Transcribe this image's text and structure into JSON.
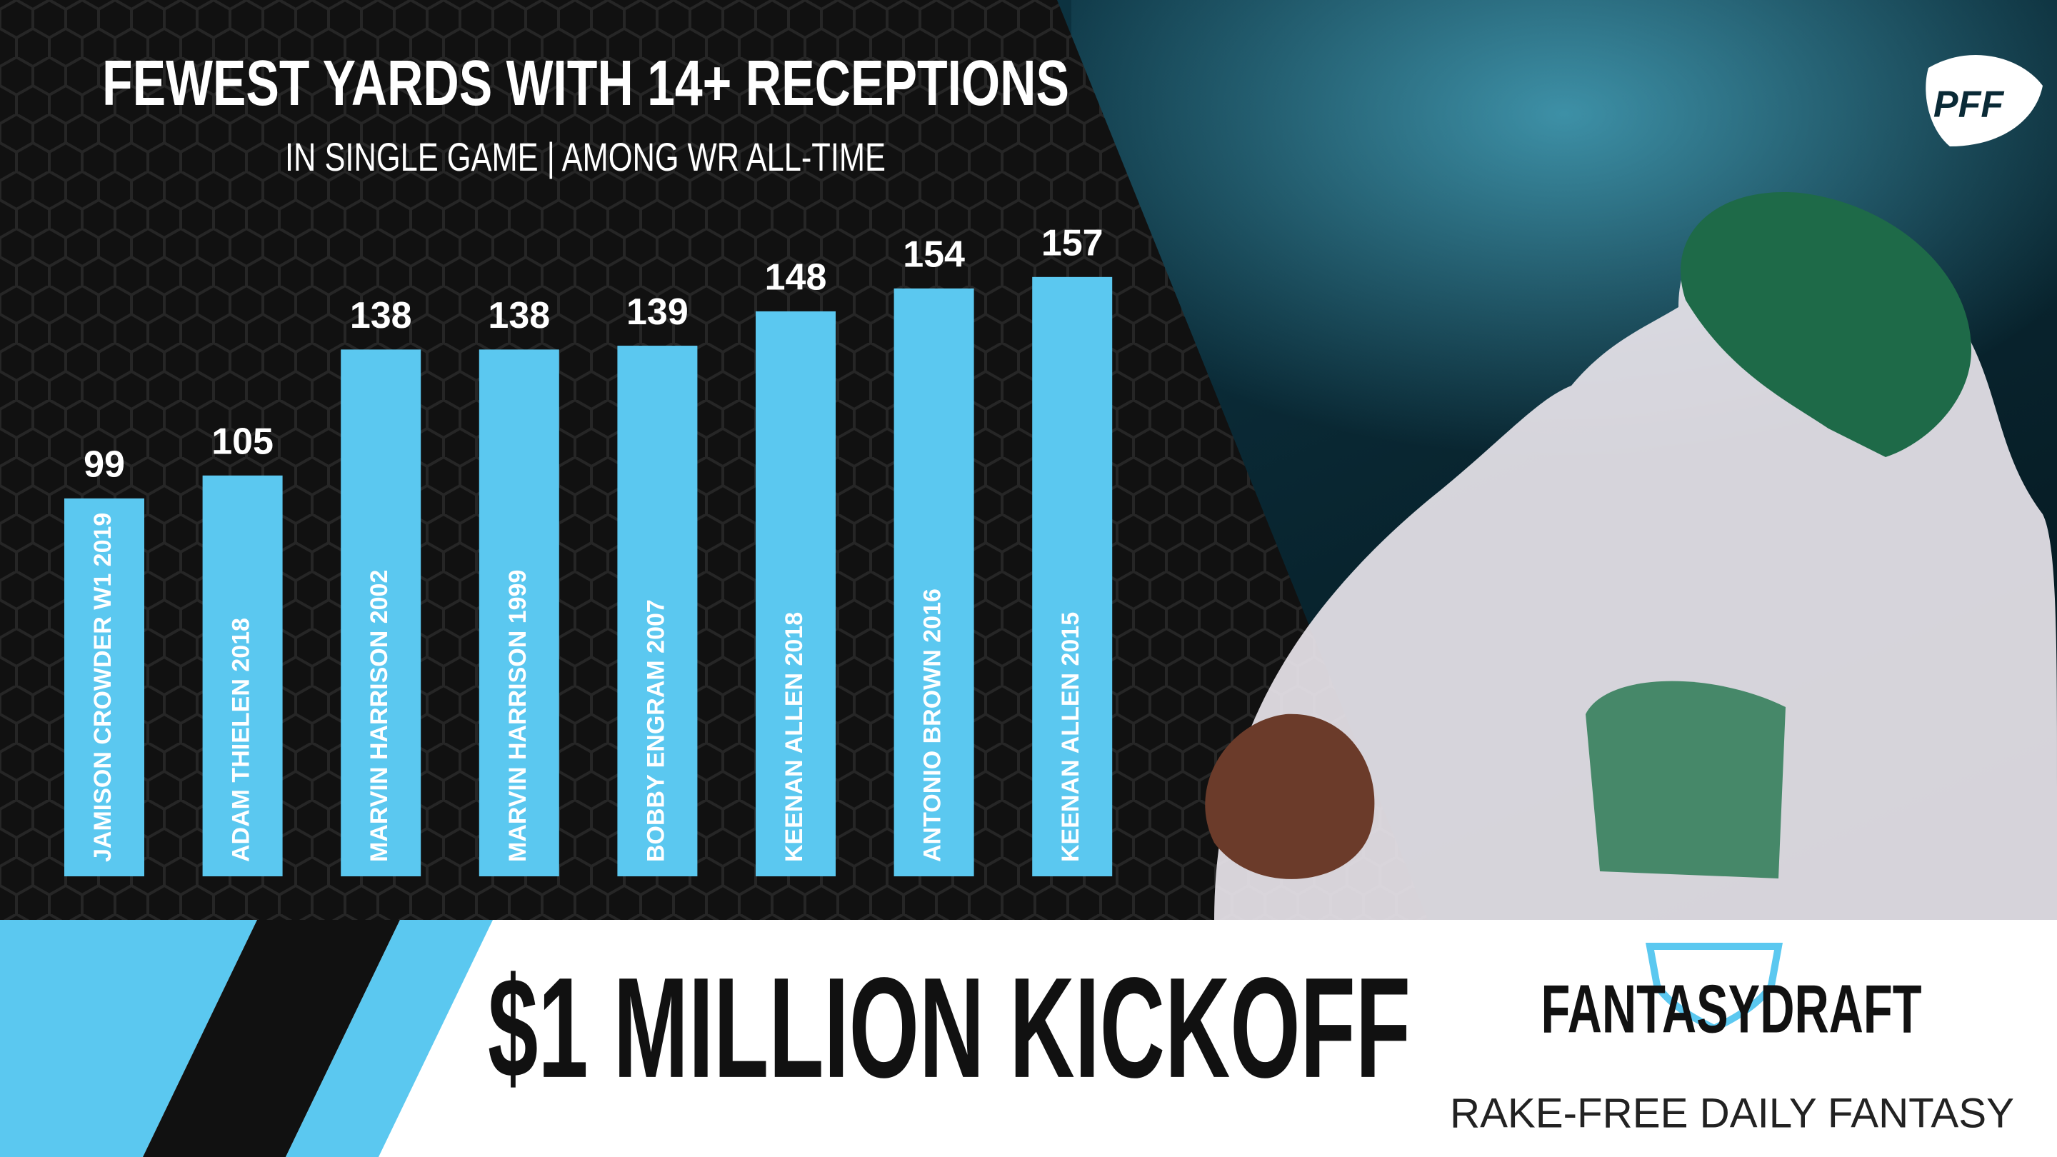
{
  "chart_data": {
    "type": "bar",
    "title": "FEWEST YARDS WITH 14+ RECEPTIONS",
    "subtitle": "IN SINGLE GAME | AMONG WR ALL-TIME",
    "categories": [
      "JAMISON CROWDER W1 2019",
      "ADAM THIELEN 2018",
      "MARVIN HARRISON 2002",
      "MARVIN HARRISON 1999",
      "BOBBY ENGRAM 2007",
      "KEENAN ALLEN 2018",
      "ANTONIO BROWN 2016",
      "KEENAN ALLEN 2015"
    ],
    "values": [
      99,
      105,
      138,
      138,
      139,
      148,
      154,
      157
    ],
    "color": "#5bc8f0"
  },
  "logo": "PFF",
  "banner": {
    "headline": "$1 MILLION KICKOFF",
    "brand": "FANTASYDRAFT",
    "tagline": "RAKE-FREE DAILY FANTASY"
  }
}
